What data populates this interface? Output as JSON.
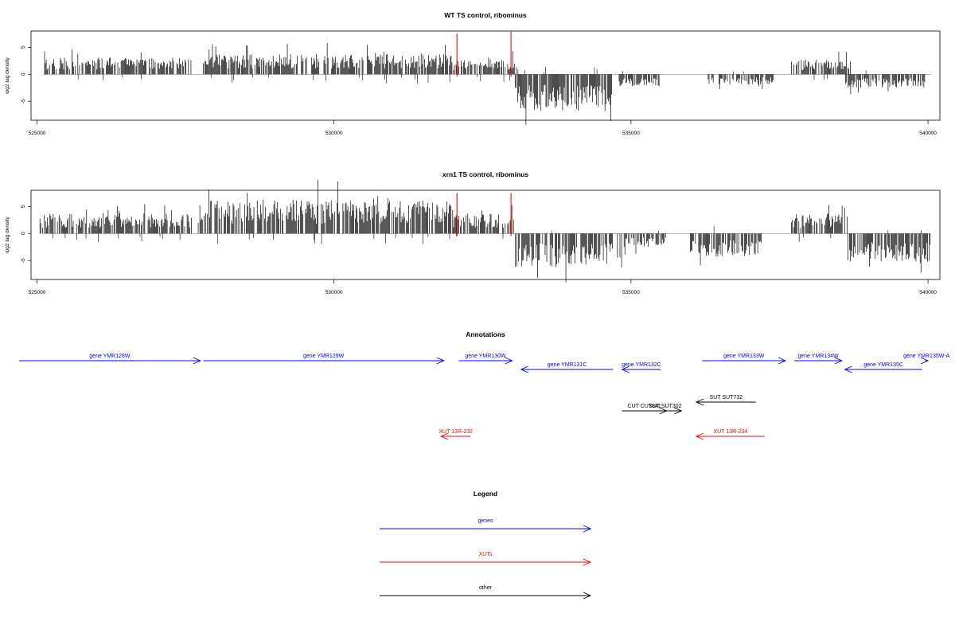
{
  "panels": [
    {
      "title": "WT TS control, ribominus",
      "ylabel": "log2 tag density",
      "xlim": [
        524900,
        540200
      ],
      "ylim": [
        -8.5,
        8
      ],
      "yticks": [
        "-5",
        "0",
        "5"
      ],
      "xticks": [
        "525000",
        "530000",
        "535000",
        "540000"
      ],
      "coverage": [
        {
          "start": 525100,
          "end": 527600,
          "strand": "+",
          "peak": 2.5
        },
        {
          "start": 527800,
          "end": 532000,
          "strand": "+",
          "peak": 3.0
        },
        {
          "start": 532000,
          "end": 533050,
          "strand": "+",
          "peak": 2.2
        },
        {
          "start": 533050,
          "end": 534700,
          "strand": "-",
          "peak": 5.5
        },
        {
          "start": 534800,
          "end": 535500,
          "strand": "-",
          "peak": 1.8
        },
        {
          "start": 536300,
          "end": 537400,
          "strand": "-",
          "peak": 1.5
        },
        {
          "start": 537700,
          "end": 538700,
          "strand": "+",
          "peak": 2.2
        },
        {
          "start": 538600,
          "end": 539950,
          "strand": "-",
          "peak": 2.0
        }
      ]
    },
    {
      "title": "xrn1 TS control, ribominus",
      "ylabel": "log2 tag density",
      "xlim": [
        524900,
        540200
      ],
      "ylim": [
        -8.5,
        8
      ],
      "yticks": [
        "-5",
        "0",
        "5"
      ],
      "xticks": [
        "525000",
        "530000",
        "535000",
        "540000"
      ],
      "coverage": [
        {
          "start": 525050,
          "end": 527600,
          "strand": "+",
          "peak": 3.0
        },
        {
          "start": 527700,
          "end": 532000,
          "strand": "+",
          "peak": 5.0
        },
        {
          "start": 532000,
          "end": 533050,
          "strand": "+",
          "peak": 3.0
        },
        {
          "start": 533050,
          "end": 534900,
          "strand": "-",
          "peak": 5.0
        },
        {
          "start": 534900,
          "end": 535600,
          "strand": "-",
          "peak": 2.0
        },
        {
          "start": 536000,
          "end": 537200,
          "strand": "-",
          "peak": 3.5
        },
        {
          "start": 537700,
          "end": 538650,
          "strand": "+",
          "peak": 3.0
        },
        {
          "start": 538650,
          "end": 540050,
          "strand": "-",
          "peak": 4.5
        }
      ]
    }
  ],
  "chart_data": {
    "type": "bar",
    "x_unit": "genomic coordinate",
    "xlim": [
      524900,
      540200
    ],
    "ylim": [
      -8.5,
      8
    ],
    "red_markers_x": [
      532070,
      532980
    ],
    "wt_marker_heights": [
      7.5,
      8
    ],
    "xrn1_marker_heights": [
      7.5,
      7.5
    ]
  },
  "annotations": {
    "title": "Annotations",
    "colors": {
      "genes": "#0000ff",
      "XUTs": "#ff0000",
      "other": "#000000"
    },
    "features": [
      {
        "label": "gene YMR128W",
        "start": 524700,
        "end": 527750,
        "strand": "+",
        "type": "genes",
        "row": 0
      },
      {
        "label": "gene YMR129W",
        "start": 527800,
        "end": 531850,
        "strand": "+",
        "type": "genes",
        "row": 0
      },
      {
        "label": "gene YMR130W",
        "start": 532100,
        "end": 533000,
        "strand": "+",
        "type": "genes",
        "row": 0
      },
      {
        "label": "gene YMR131C",
        "start": 533150,
        "end": 534700,
        "strand": "-",
        "type": "genes",
        "row": 1
      },
      {
        "label": "gene YMR132C",
        "start": 534850,
        "end": 535500,
        "strand": "-",
        "type": "genes",
        "row": 1
      },
      {
        "label": "gene YMR133W",
        "start": 536200,
        "end": 537600,
        "strand": "+",
        "type": "genes",
        "row": 0
      },
      {
        "label": "gene YMR134W",
        "start": 537750,
        "end": 538550,
        "strand": "+",
        "type": "genes",
        "row": 0
      },
      {
        "label": "gene YMR135C",
        "start": 538600,
        "end": 539900,
        "strand": "-",
        "type": "genes",
        "row": 1
      },
      {
        "label": "gene YMR135W-A",
        "start": 539950,
        "end": 540550,
        "strand": "+",
        "type": "genes",
        "row": 0
      },
      {
        "label": "SUT SUT732",
        "start": 536100,
        "end": 537100,
        "strand": "-",
        "type": "other",
        "row": 2
      },
      {
        "label": "CUT CUT841",
        "start": 534850,
        "end": 535600,
        "strand": "+",
        "type": "other",
        "row": 3
      },
      {
        "label": "SUT SUT302",
        "start": 535300,
        "end": 535850,
        "strand": "+",
        "type": "other",
        "row": 3
      },
      {
        "label": "XUT 13R-232",
        "start": 531800,
        "end": 532300,
        "strand": "-",
        "type": "XUTs",
        "row": 4
      },
      {
        "label": "XUT 13R-234",
        "start": 536100,
        "end": 537250,
        "strand": "-",
        "type": "XUTs",
        "row": 4
      }
    ]
  },
  "legend": {
    "title": "Legend",
    "items": [
      {
        "label": "genes",
        "type": "genes"
      },
      {
        "label": "XUTs",
        "type": "XUTs"
      },
      {
        "label": "other",
        "type": "other"
      }
    ]
  }
}
